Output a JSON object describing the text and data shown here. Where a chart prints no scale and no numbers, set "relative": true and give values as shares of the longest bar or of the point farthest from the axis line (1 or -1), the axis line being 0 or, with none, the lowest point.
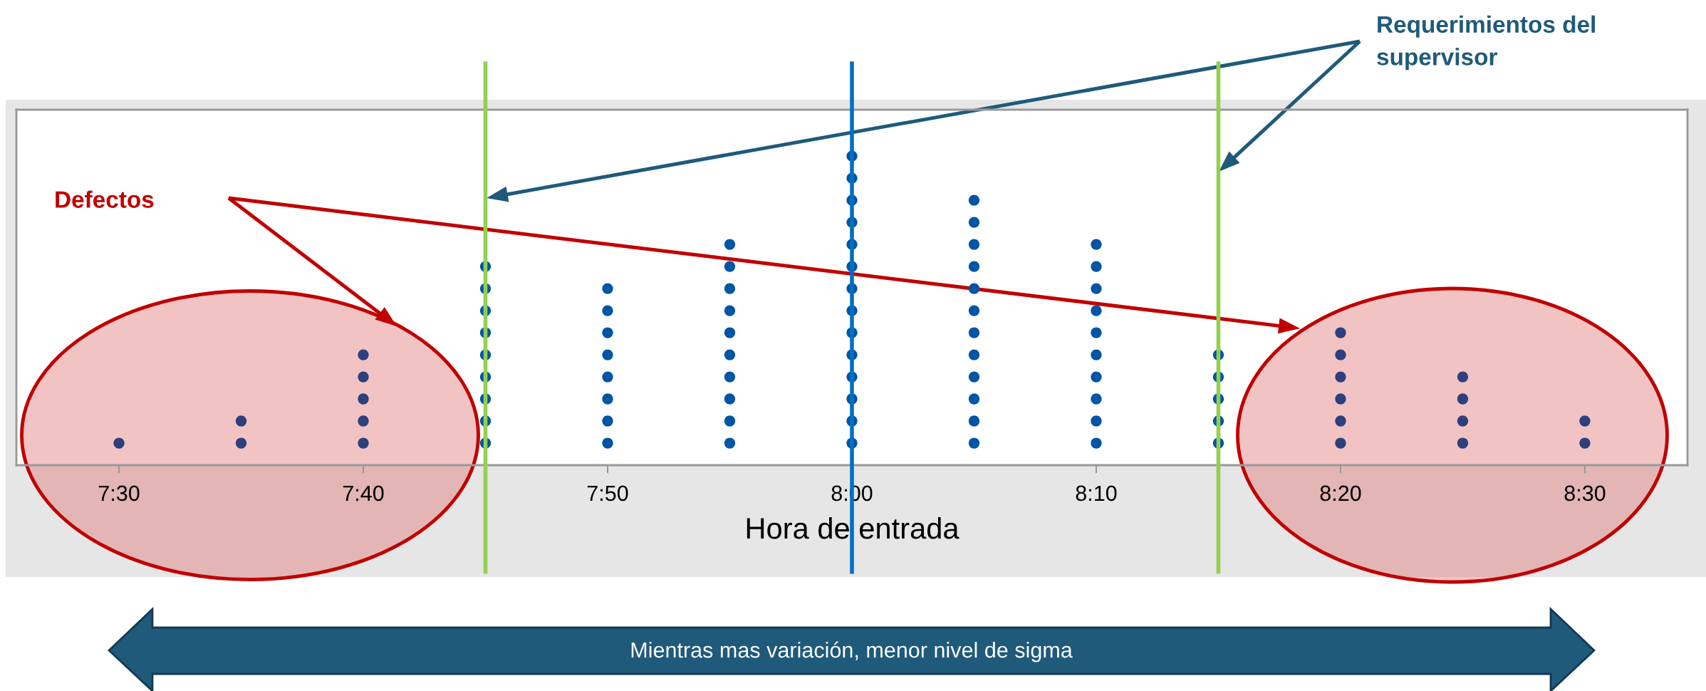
{
  "chart_data": {
    "type": "scatter",
    "xlabel": "Hora de entrada",
    "xlim": [
      7.43,
      8.57
    ],
    "xticks": [
      {
        "value": 7.5,
        "label": "7:30"
      },
      {
        "value": 7.666667,
        "label": "7:40"
      },
      {
        "value": 7.833333,
        "label": "7:50"
      },
      {
        "value": 8.0,
        "label": "8:00"
      },
      {
        "value": 8.166667,
        "label": "8:10"
      },
      {
        "value": 8.333333,
        "label": "8:20"
      },
      {
        "value": 8.5,
        "label": "8:30"
      }
    ],
    "relative": true,
    "tick_labels": "x",
    "marker": "circle",
    "series": [
      {
        "color": "#0055a5",
        "x": [
          7.75,
          7.75,
          7.75,
          7.75,
          7.75,
          7.75,
          7.75,
          7.75,
          7.75,
          7.833333,
          7.833333,
          7.833333,
          7.833333,
          7.833333,
          7.833333,
          7.833333,
          7.833333,
          7.916667,
          7.916667,
          7.916667,
          7.916667,
          7.916667,
          7.916667,
          7.916667,
          7.916667,
          7.916667,
          7.916667,
          8.0,
          8.0,
          8.0,
          8.0,
          8.0,
          8.0,
          8.0,
          8.0,
          8.0,
          8.0,
          8.0,
          8.0,
          8.0,
          8.0,
          8.083333,
          8.083333,
          8.083333,
          8.083333,
          8.083333,
          8.083333,
          8.083333,
          8.083333,
          8.083333,
          8.083333,
          8.083333,
          8.083333,
          8.166667,
          8.166667,
          8.166667,
          8.166667,
          8.166667,
          8.166667,
          8.166667,
          8.166667,
          8.166667,
          8.166667,
          8.25,
          8.25,
          8.25,
          8.25,
          8.25
        ],
        "values": [
          0.0714,
          0.1429,
          0.2143,
          0.2857,
          0.3571,
          0.4286,
          0.5,
          0.5714,
          0.6429,
          0.0714,
          0.1429,
          0.2143,
          0.2857,
          0.3571,
          0.4286,
          0.5,
          0.5714,
          0.0714,
          0.1429,
          0.2143,
          0.2857,
          0.3571,
          0.4286,
          0.5,
          0.5714,
          0.6429,
          0.7143,
          0.0714,
          0.1429,
          0.2143,
          0.2857,
          0.3571,
          0.4286,
          0.5,
          0.5714,
          0.6429,
          0.7143,
          0.7857,
          0.8571,
          0.9286,
          1,
          0.0714,
          0.1429,
          0.2143,
          0.2857,
          0.3571,
          0.4286,
          0.5,
          0.5714,
          0.6429,
          0.7143,
          0.7857,
          0.8571,
          0.0714,
          0.1429,
          0.2143,
          0.2857,
          0.3571,
          0.4286,
          0.5,
          0.5714,
          0.6429,
          0.7143,
          0.0714,
          0.1429,
          0.2143,
          0.2857,
          0.3571
        ]
      },
      {
        "color": "#2e3f7e",
        "x": [
          7.5,
          7.583333,
          7.583333,
          7.666667,
          7.666667,
          7.666667,
          7.666667,
          7.666667,
          8.333333,
          8.333333,
          8.333333,
          8.333333,
          8.333333,
          8.333333,
          8.416667,
          8.416667,
          8.416667,
          8.416667,
          8.5,
          8.5
        ],
        "values": [
          0.0714,
          0.0714,
          0.1429,
          0.0714,
          0.1429,
          0.2143,
          0.2857,
          0.3571,
          0.0714,
          0.1429,
          0.2143,
          0.2857,
          0.3571,
          0.4286,
          0.0714,
          0.1429,
          0.2143,
          0.2857,
          0.0714,
          0.1429
        ]
      }
    ],
    "ref_lines": [
      {
        "axis": "x",
        "value": 7.75,
        "color": "#92d050"
      },
      {
        "axis": "x",
        "value": 8.0,
        "color": "#0070c0"
      },
      {
        "axis": "x",
        "value": 8.25,
        "color": "#92d050"
      }
    ],
    "annotations": [
      "Defectos",
      "Requerimientos del\nsupervisor",
      "Mientras mas variación, menor nivel de sigma"
    ]
  }
}
